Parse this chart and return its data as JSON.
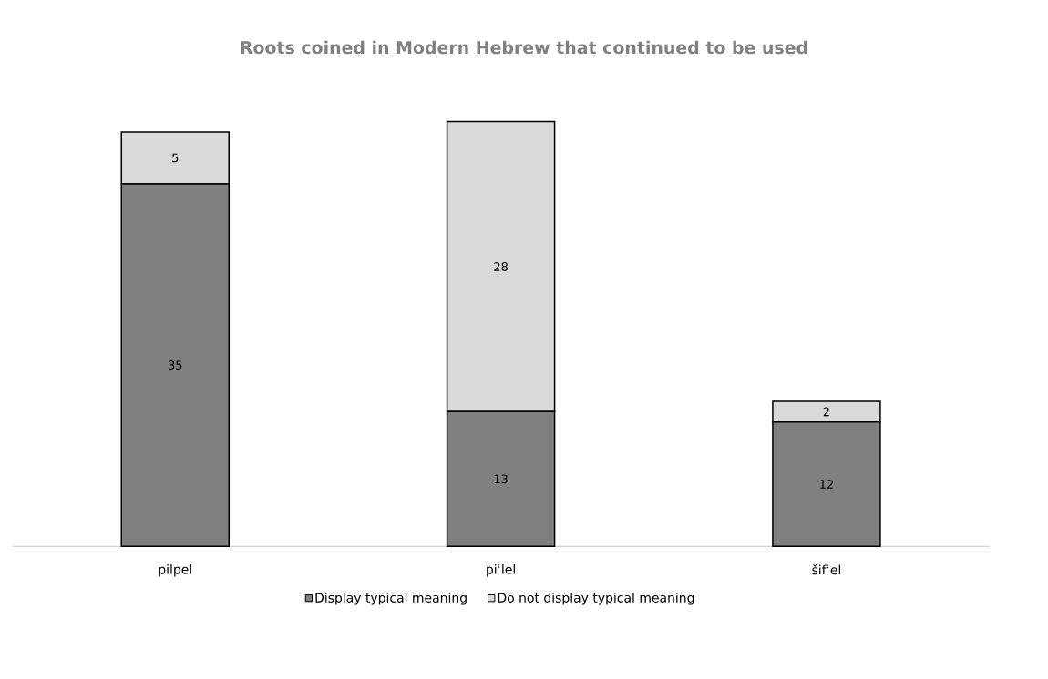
{
  "chart_data": {
    "type": "bar",
    "title": "Roots coined in Modern Hebrew that continued to be used",
    "categories": [
      "pilpel",
      "piʿlel",
      "šifʿel"
    ],
    "stacked": true,
    "data_labels": true,
    "legend": "bottom",
    "series": [
      {
        "name": "Display typical meaning",
        "color": "#808080",
        "values": [
          35,
          13,
          12
        ]
      },
      {
        "name": "Do not display typical meaning",
        "color": "#d9d9d9",
        "values": [
          5,
          28,
          2
        ]
      }
    ]
  }
}
